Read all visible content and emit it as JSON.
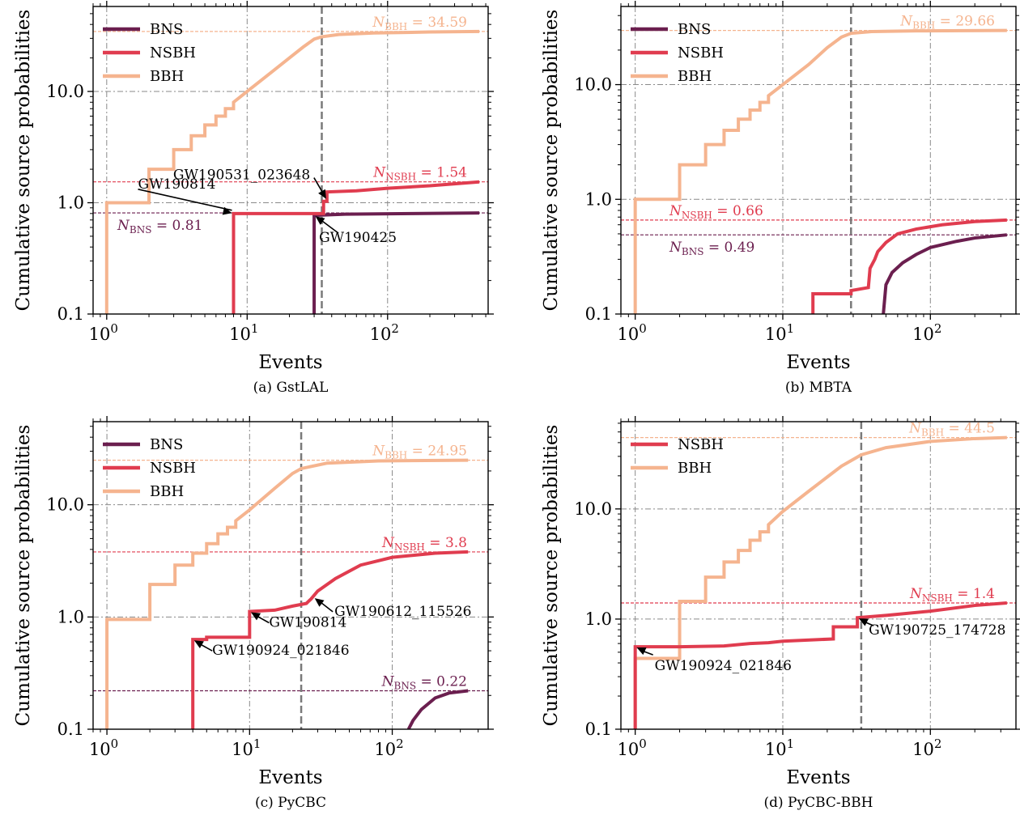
{
  "figure": {
    "ylabel": "Cumulative source probabilities",
    "xlabel": "Events",
    "x_ticks": [
      {
        "v": 1,
        "exp": "0"
      },
      {
        "v": 10,
        "exp": "1"
      },
      {
        "v": 100,
        "exp": "2"
      }
    ],
    "y_ticks": [
      {
        "v": 0.1,
        "label": "0.1"
      },
      {
        "v": 1,
        "label": "1.0"
      },
      {
        "v": 10,
        "label": "10.0"
      }
    ],
    "colors": {
      "BNS": "#6b1f4f",
      "NSBH": "#e03c4f",
      "BBH": "#f5b48f"
    }
  },
  "chart_data": [
    {
      "type": "line",
      "caption": "(a) GstLAL",
      "xscale": "log",
      "yscale": "log",
      "xlim": [
        0.8,
        520
      ],
      "ylim": [
        0.1,
        58
      ],
      "vline": 34,
      "legend": [
        "BNS",
        "NSBH",
        "BBH"
      ],
      "totals": [
        {
          "name": "BBH",
          "base": "N",
          "sub": "BBH",
          "text": " = 34.59",
          "value": 34.59
        },
        {
          "name": "NSBH",
          "base": "N",
          "sub": "NSBH",
          "text": " = 1.54",
          "value": 1.54
        },
        {
          "name": "BNS",
          "base": "N",
          "sub": "BNS",
          "text": " = 0.81",
          "value": 0.81
        }
      ],
      "series": [
        {
          "name": "BBH",
          "points": [
            [
              1,
              0.1
            ],
            [
              1,
              1
            ],
            [
              2,
              1
            ],
            [
              2,
              2
            ],
            [
              3,
              2
            ],
            [
              3,
              3
            ],
            [
              4,
              3
            ],
            [
              4,
              4
            ],
            [
              5,
              4
            ],
            [
              5,
              5
            ],
            [
              6,
              5
            ],
            [
              6,
              6
            ],
            [
              7,
              6
            ],
            [
              7,
              7
            ],
            [
              8,
              7
            ],
            [
              8,
              8
            ],
            [
              10,
              10
            ],
            [
              15,
              15
            ],
            [
              20,
              20
            ],
            [
              25,
              25
            ],
            [
              30,
              29.5
            ],
            [
              34,
              31
            ],
            [
              45,
              32.5
            ],
            [
              80,
              33.5
            ],
            [
              200,
              34.2
            ],
            [
              450,
              34.59
            ]
          ]
        },
        {
          "name": "NSBH",
          "points": [
            [
              8,
              0.1
            ],
            [
              8,
              0.8
            ],
            [
              35,
              0.8
            ],
            [
              35,
              1.03
            ],
            [
              37,
              1.03
            ],
            [
              37,
              1.25
            ],
            [
              60,
              1.28
            ],
            [
              100,
              1.35
            ],
            [
              200,
              1.42
            ],
            [
              300,
              1.48
            ],
            [
              450,
              1.54
            ]
          ]
        },
        {
          "name": "BNS",
          "points": [
            [
              30,
              0.1
            ],
            [
              30,
              0.77
            ],
            [
              50,
              0.79
            ],
            [
              150,
              0.8
            ],
            [
              450,
              0.81
            ]
          ]
        }
      ],
      "annotations": [
        {
          "text": "GW190814",
          "x": 8,
          "y": 0.8
        },
        {
          "text": "GW190531_023648",
          "x": 37,
          "y": 1.05
        },
        {
          "text": "GW190425",
          "x": 30,
          "y": 0.77
        }
      ]
    },
    {
      "type": "line",
      "caption": "(b) MBTA",
      "xscale": "log",
      "yscale": "log",
      "xlim": [
        0.8,
        380
      ],
      "ylim": [
        0.1,
        48
      ],
      "vline": 29,
      "legend": [
        "BNS",
        "NSBH",
        "BBH"
      ],
      "totals": [
        {
          "name": "BBH",
          "base": "N",
          "sub": "BBH",
          "text": " = 29.66",
          "value": 29.66
        },
        {
          "name": "NSBH",
          "base": "N",
          "sub": "NSBH",
          "text": " = 0.66",
          "value": 0.66
        },
        {
          "name": "BNS",
          "base": "N",
          "sub": "BNS",
          "text": " = 0.49",
          "value": 0.49
        }
      ],
      "series": [
        {
          "name": "BBH",
          "points": [
            [
              1,
              0.1
            ],
            [
              1,
              1
            ],
            [
              2,
              1
            ],
            [
              2,
              2
            ],
            [
              3,
              2
            ],
            [
              3,
              3
            ],
            [
              4,
              3
            ],
            [
              4,
              4
            ],
            [
              5,
              4
            ],
            [
              5,
              5
            ],
            [
              6,
              5
            ],
            [
              6,
              6
            ],
            [
              7,
              6
            ],
            [
              7,
              7
            ],
            [
              8,
              7
            ],
            [
              8,
              8
            ],
            [
              10,
              10
            ],
            [
              15,
              15
            ],
            [
              20,
              21
            ],
            [
              25,
              26
            ],
            [
              29,
              28
            ],
            [
              40,
              29
            ],
            [
              80,
              29.4
            ],
            [
              330,
              29.66
            ]
          ]
        },
        {
          "name": "NSBH",
          "points": [
            [
              16,
              0.1
            ],
            [
              16,
              0.15
            ],
            [
              29,
              0.15
            ],
            [
              29,
              0.16
            ],
            [
              38,
              0.17
            ],
            [
              39,
              0.25
            ],
            [
              42,
              0.3
            ],
            [
              44,
              0.35
            ],
            [
              50,
              0.42
            ],
            [
              60,
              0.5
            ],
            [
              80,
              0.55
            ],
            [
              120,
              0.6
            ],
            [
              200,
              0.64
            ],
            [
              330,
              0.66
            ]
          ]
        },
        {
          "name": "BNS",
          "points": [
            [
              48,
              0.1
            ],
            [
              50,
              0.18
            ],
            [
              55,
              0.23
            ],
            [
              65,
              0.28
            ],
            [
              80,
              0.33
            ],
            [
              100,
              0.38
            ],
            [
              150,
              0.43
            ],
            [
              200,
              0.46
            ],
            [
              330,
              0.49
            ]
          ]
        }
      ],
      "annotations": []
    },
    {
      "type": "line",
      "caption": "(c) PyCBC",
      "xscale": "log",
      "yscale": "log",
      "xlim": [
        0.8,
        470
      ],
      "ylim": [
        0.1,
        55
      ],
      "vline": 23,
      "legend": [
        "BNS",
        "NSBH",
        "BBH"
      ],
      "totals": [
        {
          "name": "BBH",
          "base": "N",
          "sub": "BBH",
          "text": " = 24.95",
          "value": 24.95
        },
        {
          "name": "NSBH",
          "base": "N",
          "sub": "NSBH",
          "text": " = 3.8",
          "value": 3.8
        },
        {
          "name": "BNS",
          "base": "N",
          "sub": "BNS",
          "text": " = 0.22",
          "value": 0.22
        }
      ],
      "series": [
        {
          "name": "BBH",
          "points": [
            [
              1,
              0.1
            ],
            [
              1,
              0.95
            ],
            [
              2,
              0.95
            ],
            [
              2,
              1.95
            ],
            [
              3,
              1.95
            ],
            [
              3,
              2.9
            ],
            [
              4,
              2.9
            ],
            [
              4,
              3.7
            ],
            [
              5,
              3.7
            ],
            [
              5,
              4.5
            ],
            [
              6,
              4.5
            ],
            [
              6,
              5.5
            ],
            [
              7,
              5.5
            ],
            [
              7,
              6.3
            ],
            [
              8,
              6.3
            ],
            [
              8,
              7.2
            ],
            [
              10,
              9
            ],
            [
              15,
              14
            ],
            [
              20,
              19
            ],
            [
              23,
              21
            ],
            [
              35,
              23.5
            ],
            [
              80,
              24.6
            ],
            [
              340,
              24.95
            ]
          ]
        },
        {
          "name": "NSBH",
          "points": [
            [
              4,
              0.1
            ],
            [
              4,
              0.63
            ],
            [
              5,
              0.63
            ],
            [
              5,
              0.66
            ],
            [
              10,
              0.66
            ],
            [
              10,
              1.12
            ],
            [
              15,
              1.15
            ],
            [
              20,
              1.25
            ],
            [
              25,
              1.32
            ],
            [
              27,
              1.45
            ],
            [
              30,
              1.7
            ],
            [
              40,
              2.2
            ],
            [
              60,
              2.9
            ],
            [
              100,
              3.4
            ],
            [
              200,
              3.7
            ],
            [
              340,
              3.8
            ]
          ]
        },
        {
          "name": "BNS",
          "points": [
            [
              130,
              0.1
            ],
            [
              140,
              0.12
            ],
            [
              160,
              0.15
            ],
            [
              200,
              0.19
            ],
            [
              250,
              0.21
            ],
            [
              340,
              0.22
            ]
          ]
        }
      ],
      "annotations": [
        {
          "text": "GW190612_115526",
          "x": 28,
          "y": 1.5
        },
        {
          "text": "GW190814",
          "x": 10,
          "y": 1.12
        },
        {
          "text": "GW190924_021846",
          "x": 4,
          "y": 0.63
        }
      ]
    },
    {
      "type": "line",
      "caption": "(d) PyCBC-BBH",
      "xscale": "log",
      "yscale": "log",
      "xlim": [
        0.8,
        380
      ],
      "ylim": [
        0.1,
        62
      ],
      "vline": 34,
      "legend": [
        "NSBH",
        "BBH"
      ],
      "totals": [
        {
          "name": "BBH",
          "base": "N",
          "sub": "BBH",
          "text": " = 44.5",
          "value": 44.5
        },
        {
          "name": "NSBH",
          "base": "N",
          "sub": "NSBH",
          "text": " = 1.4",
          "value": 1.4
        }
      ],
      "series": [
        {
          "name": "BBH",
          "points": [
            [
              1,
              0.1
            ],
            [
              1,
              0.44
            ],
            [
              2,
              0.44
            ],
            [
              2,
              1.45
            ],
            [
              3,
              1.45
            ],
            [
              3,
              2.4
            ],
            [
              4,
              2.4
            ],
            [
              4,
              3.3
            ],
            [
              5,
              3.3
            ],
            [
              5,
              4.2
            ],
            [
              6,
              4.2
            ],
            [
              6,
              5.2
            ],
            [
              7,
              5.2
            ],
            [
              7,
              6.2
            ],
            [
              8,
              6.2
            ],
            [
              8,
              7.2
            ],
            [
              10,
              9.5
            ],
            [
              15,
              14.5
            ],
            [
              20,
              19.5
            ],
            [
              25,
              24.5
            ],
            [
              34,
              31
            ],
            [
              50,
              36
            ],
            [
              100,
              41
            ],
            [
              200,
              43.5
            ],
            [
              330,
              44.5
            ]
          ]
        },
        {
          "name": "NSBH",
          "points": [
            [
              1,
              0.1
            ],
            [
              1,
              0.56
            ],
            [
              2,
              0.56
            ],
            [
              4,
              0.57
            ],
            [
              6,
              0.6
            ],
            [
              8,
              0.61
            ],
            [
              10,
              0.63
            ],
            [
              22,
              0.66
            ],
            [
              22,
              0.85
            ],
            [
              32,
              0.85
            ],
            [
              32,
              1.03
            ],
            [
              50,
              1.08
            ],
            [
              100,
              1.18
            ],
            [
              200,
              1.33
            ],
            [
              330,
              1.4
            ]
          ]
        }
      ],
      "annotations": [
        {
          "text": "GW190725_174728",
          "x": 32,
          "y": 1.03
        },
        {
          "text": "GW190924_021846",
          "x": 1,
          "y": 0.56
        }
      ]
    }
  ]
}
